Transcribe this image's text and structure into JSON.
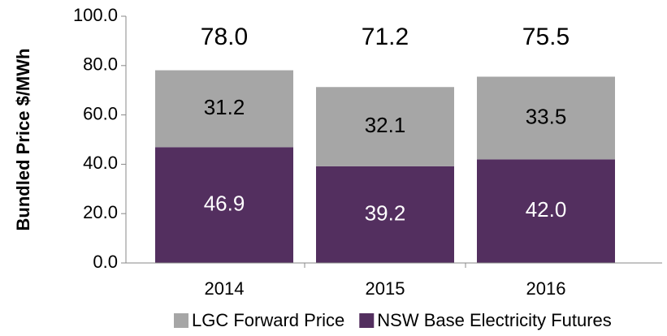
{
  "chart_data": {
    "type": "stacked_bar",
    "y_label": "Bundled Price $/MWh",
    "categories": [
      "2014",
      "2015",
      "2016"
    ],
    "series": [
      {
        "name": "LGC Forward Price",
        "color": "#a6a6a6",
        "values": [
          31.2,
          32.1,
          33.5
        ],
        "value_labels": [
          "31.2",
          "32.1",
          "33.5"
        ]
      },
      {
        "name": "NSW Base Electricity Futures",
        "color": "#532f5f",
        "values": [
          46.9,
          39.2,
          42.0
        ],
        "value_labels": [
          "46.9",
          "39.2",
          "42.0"
        ]
      }
    ],
    "totals": [
      78.0,
      71.2,
      75.5
    ],
    "total_labels": [
      "78.0",
      "71.2",
      "75.5"
    ],
    "ylim": [
      0,
      100
    ],
    "yticks": [
      {
        "value": 0,
        "label": "0.0"
      },
      {
        "value": 20,
        "label": "20.0"
      },
      {
        "value": 40,
        "label": "40.0"
      },
      {
        "value": 60,
        "label": "60.0"
      },
      {
        "value": 80,
        "label": "80.0"
      },
      {
        "value": 100,
        "label": "100.0"
      }
    ],
    "legend": "bottom"
  }
}
